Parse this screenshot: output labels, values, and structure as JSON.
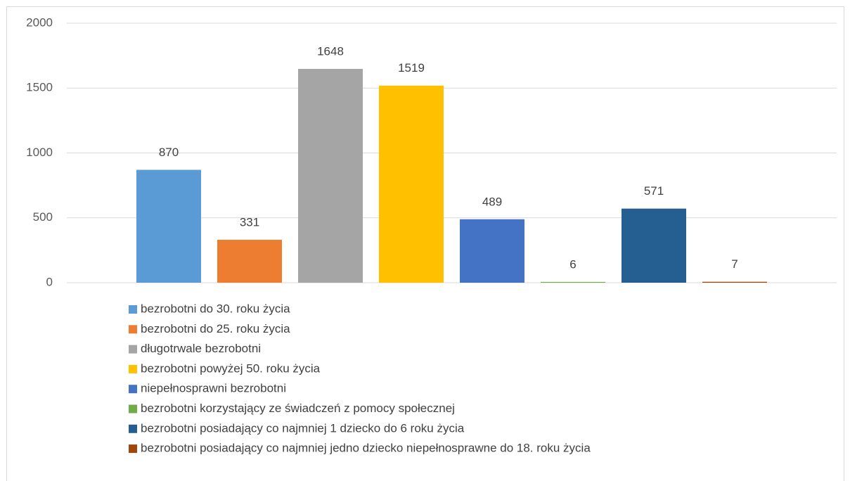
{
  "chart_data": {
    "type": "bar",
    "series": [
      {
        "name": "bezrobotni do 30. roku życia",
        "color": "#5b9bd5",
        "values": [
          870
        ]
      },
      {
        "name": "bezrobotni do 25. roku życia",
        "color": "#ed7d31",
        "values": [
          331
        ]
      },
      {
        "name": "długotrwale bezrobotni",
        "color": "#a5a5a5",
        "values": [
          1648
        ]
      },
      {
        "name": "bezrobotni powyżej 50. roku życia",
        "color": "#ffc000",
        "values": [
          1519
        ]
      },
      {
        "name": "niepełnosprawni bezrobotni",
        "color": "#4472c4",
        "values": [
          489
        ]
      },
      {
        "name": "bezrobotni korzystający ze świadczeń z pomocy społecznej",
        "color": "#70ad47",
        "values": [
          6
        ]
      },
      {
        "name": "bezrobotni posiadający co najmniej 1 dziecko do 6 roku życia",
        "color": "#255e91",
        "values": [
          571
        ]
      },
      {
        "name": "bezrobotni posiadający co najmniej jedno dziecko niepełnosprawne do 18. roku życia",
        "color": "#9e480e",
        "values": [
          7
        ]
      }
    ],
    "ylim": [
      0,
      2000
    ],
    "yticks": [
      0,
      500,
      1000,
      1500,
      2000
    ],
    "grid": true,
    "legend": "bottom"
  }
}
